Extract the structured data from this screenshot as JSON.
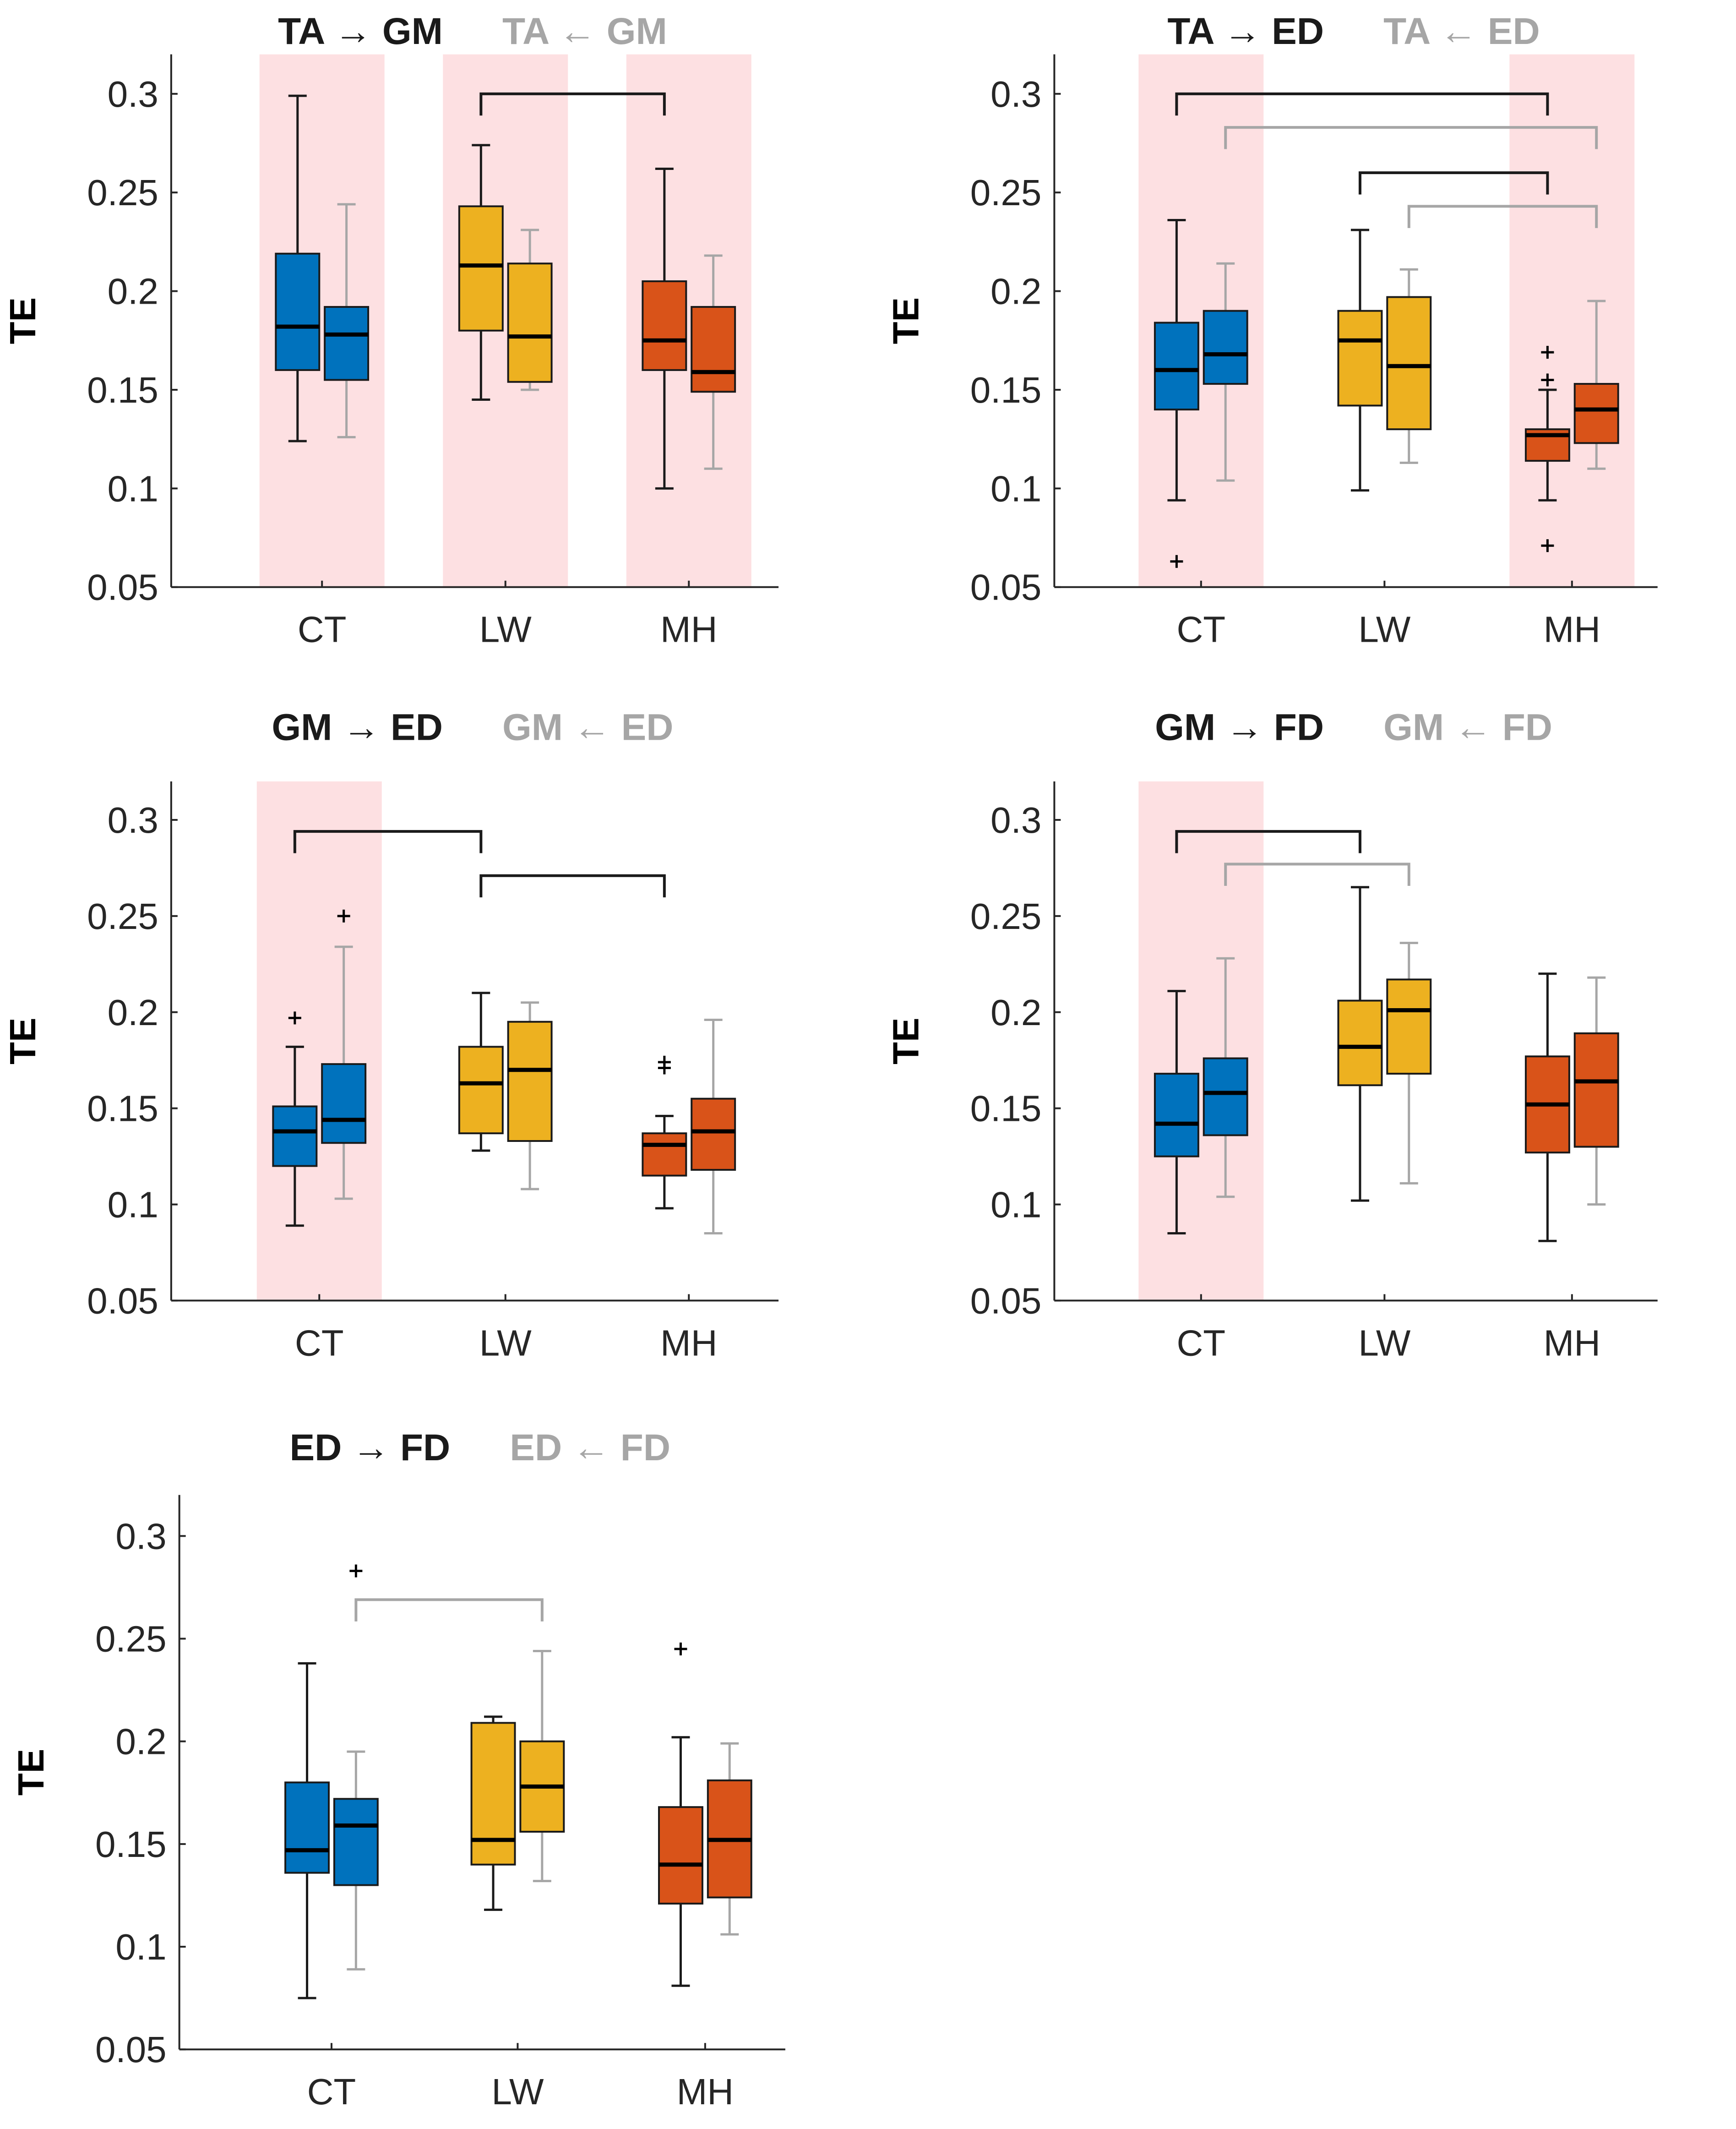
{
  "colors": {
    "ct": "#0072BD",
    "lw": "#EDB120",
    "mh": "#D95319",
    "shade": "#FDE0E2",
    "fwd": "#1A1A1A",
    "bwd": "#A6A6A6",
    "axis": "#262626"
  },
  "chart_data": [
    {
      "type": "box",
      "id": "ta-gm",
      "title_fwd": "TA → GM",
      "title_bwd": "TA ← GM",
      "ylabel": "TE",
      "categories": [
        "CT",
        "LW",
        "MH"
      ],
      "yticks": [
        "0.05",
        "0.1",
        "0.15",
        "0.2",
        "0.25",
        "0.3"
      ],
      "ylim": [
        0.05,
        0.32
      ],
      "highlighted": [
        "CT",
        "LW",
        "MH"
      ],
      "boxes": [
        {
          "group": "CT",
          "dir": "fwd",
          "min": 0.124,
          "q1": 0.16,
          "median": 0.182,
          "q3": 0.219,
          "max": 0.299,
          "outliers": []
        },
        {
          "group": "CT",
          "dir": "bwd",
          "min": 0.126,
          "q1": 0.155,
          "median": 0.178,
          "q3": 0.192,
          "max": 0.244,
          "outliers": []
        },
        {
          "group": "LW",
          "dir": "fwd",
          "min": 0.145,
          "q1": 0.18,
          "median": 0.213,
          "q3": 0.243,
          "max": 0.274,
          "outliers": []
        },
        {
          "group": "LW",
          "dir": "bwd",
          "min": 0.15,
          "q1": 0.154,
          "median": 0.177,
          "q3": 0.214,
          "max": 0.231,
          "outliers": []
        },
        {
          "group": "MH",
          "dir": "fwd",
          "min": 0.1,
          "q1": 0.16,
          "median": 0.175,
          "q3": 0.205,
          "max": 0.262,
          "outliers": []
        },
        {
          "group": "MH",
          "dir": "bwd",
          "min": 0.11,
          "q1": 0.149,
          "median": 0.159,
          "q3": 0.192,
          "max": 0.218,
          "outliers": []
        }
      ],
      "brackets": [
        {
          "dir": "fwd",
          "from": "LW",
          "to": "MH",
          "y": 0.3
        }
      ]
    },
    {
      "type": "box",
      "id": "ta-ed",
      "title_fwd": "TA → ED",
      "title_bwd": "TA ← ED",
      "ylabel": "TE",
      "categories": [
        "CT",
        "LW",
        "MH"
      ],
      "yticks": [
        "0.05",
        "0.1",
        "0.15",
        "0.2",
        "0.25",
        "0.3"
      ],
      "ylim": [
        0.05,
        0.32
      ],
      "highlighted": [
        "CT",
        "MH"
      ],
      "boxes": [
        {
          "group": "CT",
          "dir": "fwd",
          "min": 0.094,
          "q1": 0.14,
          "median": 0.16,
          "q3": 0.184,
          "max": 0.236,
          "outliers": [
            0.063
          ]
        },
        {
          "group": "CT",
          "dir": "bwd",
          "min": 0.104,
          "q1": 0.153,
          "median": 0.168,
          "q3": 0.19,
          "max": 0.214,
          "outliers": []
        },
        {
          "group": "LW",
          "dir": "fwd",
          "min": 0.099,
          "q1": 0.142,
          "median": 0.175,
          "q3": 0.19,
          "max": 0.231,
          "outliers": []
        },
        {
          "group": "LW",
          "dir": "bwd",
          "min": 0.113,
          "q1": 0.13,
          "median": 0.162,
          "q3": 0.197,
          "max": 0.211,
          "outliers": []
        },
        {
          "group": "MH",
          "dir": "fwd",
          "min": 0.094,
          "q1": 0.114,
          "median": 0.127,
          "q3": 0.13,
          "max": 0.15,
          "outliers": [
            0.071,
            0.155,
            0.169
          ]
        },
        {
          "group": "MH",
          "dir": "bwd",
          "min": 0.11,
          "q1": 0.123,
          "median": 0.14,
          "q3": 0.153,
          "max": 0.195,
          "outliers": []
        }
      ],
      "brackets": [
        {
          "dir": "fwd",
          "from": "CT",
          "to": "MH",
          "y": 0.3
        },
        {
          "dir": "bwd",
          "from": "CT",
          "to": "MH",
          "y": 0.283
        },
        {
          "dir": "fwd",
          "from": "LW",
          "to": "MH",
          "y": 0.26
        },
        {
          "dir": "bwd",
          "from": "LW",
          "to": "MH",
          "y": 0.243
        }
      ]
    },
    {
      "type": "box",
      "id": "gm-ed",
      "title_fwd": "GM → ED",
      "title_bwd": "GM ← ED",
      "ylabel": "TE",
      "categories": [
        "CT",
        "LW",
        "MH"
      ],
      "yticks": [
        "0.05",
        "0.1",
        "0.15",
        "0.2",
        "0.25",
        "0.3"
      ],
      "ylim": [
        0.05,
        0.32
      ],
      "highlighted": [
        "CT"
      ],
      "boxes": [
        {
          "group": "CT",
          "dir": "fwd",
          "min": 0.089,
          "q1": 0.12,
          "median": 0.138,
          "q3": 0.151,
          "max": 0.182,
          "outliers": [
            0.197
          ]
        },
        {
          "group": "CT",
          "dir": "bwd",
          "min": 0.103,
          "q1": 0.132,
          "median": 0.144,
          "q3": 0.173,
          "max": 0.234,
          "outliers": [
            0.25
          ]
        },
        {
          "group": "LW",
          "dir": "fwd",
          "min": 0.128,
          "q1": 0.137,
          "median": 0.163,
          "q3": 0.182,
          "max": 0.21,
          "outliers": []
        },
        {
          "group": "LW",
          "dir": "bwd",
          "min": 0.108,
          "q1": 0.133,
          "median": 0.17,
          "q3": 0.195,
          "max": 0.205,
          "outliers": []
        },
        {
          "group": "MH",
          "dir": "fwd",
          "min": 0.098,
          "q1": 0.115,
          "median": 0.131,
          "q3": 0.137,
          "max": 0.146,
          "outliers": [
            0.171,
            0.174
          ]
        },
        {
          "group": "MH",
          "dir": "bwd",
          "min": 0.085,
          "q1": 0.118,
          "median": 0.138,
          "q3": 0.155,
          "max": 0.196,
          "outliers": []
        }
      ],
      "brackets": [
        {
          "dir": "fwd",
          "from": "CT",
          "to": "LW",
          "y": 0.294
        },
        {
          "dir": "fwd",
          "from": "LW",
          "to": "MH",
          "y": 0.271
        }
      ]
    },
    {
      "type": "box",
      "id": "gm-fd",
      "title_fwd": "GM → FD",
      "title_bwd": "GM ← FD",
      "ylabel": "TE",
      "categories": [
        "CT",
        "LW",
        "MH"
      ],
      "yticks": [
        "0.05",
        "0.1",
        "0.15",
        "0.2",
        "0.25",
        "0.3"
      ],
      "ylim": [
        0.05,
        0.32
      ],
      "highlighted": [
        "CT"
      ],
      "boxes": [
        {
          "group": "CT",
          "dir": "fwd",
          "min": 0.085,
          "q1": 0.125,
          "median": 0.142,
          "q3": 0.168,
          "max": 0.211,
          "outliers": []
        },
        {
          "group": "CT",
          "dir": "bwd",
          "min": 0.104,
          "q1": 0.136,
          "median": 0.158,
          "q3": 0.176,
          "max": 0.228,
          "outliers": []
        },
        {
          "group": "LW",
          "dir": "fwd",
          "min": 0.102,
          "q1": 0.162,
          "median": 0.182,
          "q3": 0.206,
          "max": 0.265,
          "outliers": []
        },
        {
          "group": "LW",
          "dir": "bwd",
          "min": 0.111,
          "q1": 0.168,
          "median": 0.201,
          "q3": 0.217,
          "max": 0.236,
          "outliers": []
        },
        {
          "group": "MH",
          "dir": "fwd",
          "min": 0.081,
          "q1": 0.127,
          "median": 0.152,
          "q3": 0.177,
          "max": 0.22,
          "outliers": []
        },
        {
          "group": "MH",
          "dir": "bwd",
          "min": 0.1,
          "q1": 0.13,
          "median": 0.164,
          "q3": 0.189,
          "max": 0.218,
          "outliers": []
        }
      ],
      "brackets": [
        {
          "dir": "fwd",
          "from": "CT",
          "to": "LW",
          "y": 0.294
        },
        {
          "dir": "bwd",
          "from": "CT",
          "to": "LW",
          "y": 0.277
        }
      ]
    },
    {
      "type": "box",
      "id": "ed-fd",
      "title_fwd": "ED → FD",
      "title_bwd": "ED ← FD",
      "ylabel": "TE",
      "categories": [
        "CT",
        "LW",
        "MH"
      ],
      "yticks": [
        "0.05",
        "0.1",
        "0.15",
        "0.2",
        "0.25",
        "0.3"
      ],
      "ylim": [
        0.05,
        0.32
      ],
      "highlighted": [],
      "boxes": [
        {
          "group": "CT",
          "dir": "fwd",
          "min": 0.075,
          "q1": 0.136,
          "median": 0.147,
          "q3": 0.18,
          "max": 0.238,
          "outliers": []
        },
        {
          "group": "CT",
          "dir": "bwd",
          "min": 0.089,
          "q1": 0.13,
          "median": 0.159,
          "q3": 0.172,
          "max": 0.195,
          "outliers": [
            0.283
          ]
        },
        {
          "group": "LW",
          "dir": "fwd",
          "min": 0.118,
          "q1": 0.14,
          "median": 0.152,
          "q3": 0.209,
          "max": 0.212,
          "outliers": []
        },
        {
          "group": "LW",
          "dir": "bwd",
          "min": 0.132,
          "q1": 0.156,
          "median": 0.178,
          "q3": 0.2,
          "max": 0.244,
          "outliers": []
        },
        {
          "group": "MH",
          "dir": "fwd",
          "min": 0.081,
          "q1": 0.121,
          "median": 0.14,
          "q3": 0.168,
          "max": 0.202,
          "outliers": [
            0.245
          ]
        },
        {
          "group": "MH",
          "dir": "bwd",
          "min": 0.106,
          "q1": 0.124,
          "median": 0.152,
          "q3": 0.181,
          "max": 0.199,
          "outliers": []
        }
      ],
      "brackets": [
        {
          "dir": "bwd",
          "from": "CT",
          "to": "LW",
          "y": 0.269
        }
      ]
    }
  ]
}
